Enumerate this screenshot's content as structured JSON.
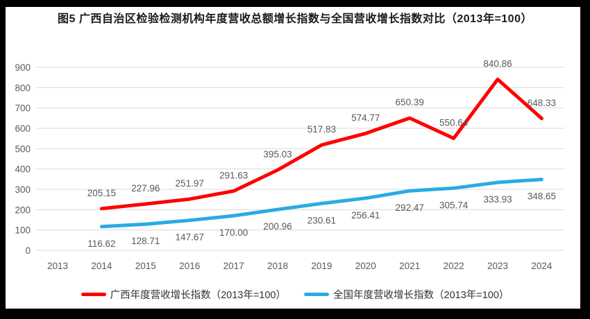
{
  "chart_data": {
    "type": "line",
    "title": "图5  广西自治区检验检测机构年度营收总额增长指数与全国营收增长指数对比（2013年=100）",
    "categories": [
      "2013",
      "2014",
      "2015",
      "2016",
      "2017",
      "2018",
      "2019",
      "2020",
      "2021",
      "2022",
      "2023",
      "2024"
    ],
    "ylim": [
      0,
      900
    ],
    "ytick_step": 100,
    "grid": true,
    "legend_position": "bottom",
    "axis_text_color": "#595959",
    "gridline_color": "#D9D9D9",
    "series": [
      {
        "name": "广西年度营收增长指数（2013年=100）",
        "color": "#FF0000",
        "label_position": "above",
        "values": [
          null,
          205.15,
          227.96,
          251.97,
          291.63,
          395.03,
          517.83,
          574.77,
          650.39,
          550.64,
          840.86,
          648.33
        ],
        "labels": [
          null,
          "205.15",
          "227.96",
          "251.97",
          "291.63",
          "395.03",
          "517.83",
          "574.77",
          "650.39",
          "550.64",
          "840.86",
          "648.33"
        ]
      },
      {
        "name": "全国年度营收增长指数（2013年=100）",
        "color": "#29ABE2",
        "label_position": "below",
        "values": [
          null,
          116.62,
          128.71,
          147.67,
          170.0,
          200.96,
          230.61,
          256.41,
          292.47,
          305.74,
          333.93,
          348.65
        ],
        "labels": [
          null,
          "116.62",
          "128.71",
          "147.67",
          "170.00",
          "200.96",
          "230.61",
          "256.41",
          "292.47",
          "305.74",
          "333.93",
          "348.65"
        ]
      }
    ]
  }
}
